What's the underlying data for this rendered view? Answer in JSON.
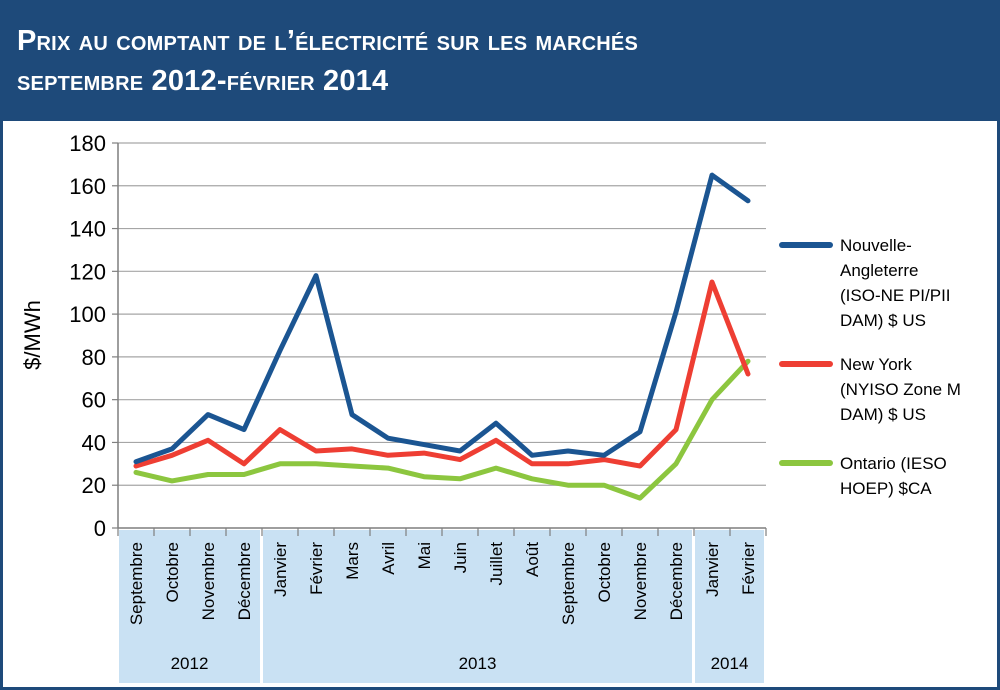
{
  "title": {
    "line1": "Prix au comptant de l’électricité sur les marchés",
    "line2": "septembre 2012-février 2014"
  },
  "colors": {
    "frame": "#1e4a7a",
    "title_bg": "#1e4a7a",
    "year_band": "#c9e1f3",
    "grid": "#a6a6a6"
  },
  "chart_data": {
    "type": "line",
    "ylabel": "$/MWh",
    "ylim": [
      0,
      180
    ],
    "yticks": [
      0,
      20,
      40,
      60,
      80,
      100,
      120,
      140,
      160,
      180
    ],
    "grid": true,
    "legend_position": "right",
    "categories": [
      "Septembre",
      "Octobre",
      "Novembre",
      "Décembre",
      "Janvier",
      "Février",
      "Mars",
      "Avril",
      "Mai",
      "Juin",
      "Juillet",
      "Août",
      "Septembre",
      "Octobre",
      "Novembre",
      "Décembre",
      "Janvier",
      "Février"
    ],
    "year_groups": [
      {
        "label": "2012",
        "start": 0,
        "end": 3
      },
      {
        "label": "2013",
        "start": 4,
        "end": 15
      },
      {
        "label": "2014",
        "start": 16,
        "end": 17
      }
    ],
    "series": [
      {
        "name": "Nouvelle-Angleterre (ISO-NE PI/PII DAM) $ US",
        "legend_lines": [
          "Nouvelle-",
          "Angleterre",
          "(ISO-NE PI/PII",
          "DAM) $ US"
        ],
        "color": "#1b5592",
        "values": [
          31,
          37,
          53,
          46,
          83,
          118,
          53,
          42,
          39,
          36,
          49,
          34,
          36,
          34,
          45,
          101,
          165,
          153
        ]
      },
      {
        "name": "New York (NYISO Zone M DAM) $ US",
        "legend_lines": [
          "New York",
          "(NYISO Zone M",
          "DAM) $ US"
        ],
        "color": "#ee3e33",
        "values": [
          29,
          34,
          41,
          30,
          46,
          36,
          37,
          34,
          35,
          32,
          41,
          30,
          30,
          32,
          29,
          46,
          115,
          72
        ]
      },
      {
        "name": "Ontario (IESO HOEP) $CA",
        "legend_lines": [
          "Ontario (IESO",
          "HOEP) $CA"
        ],
        "color": "#8cc63f",
        "values": [
          26,
          22,
          25,
          25,
          30,
          30,
          29,
          28,
          24,
          23,
          28,
          23,
          20,
          20,
          14,
          30,
          60,
          78
        ]
      }
    ]
  }
}
